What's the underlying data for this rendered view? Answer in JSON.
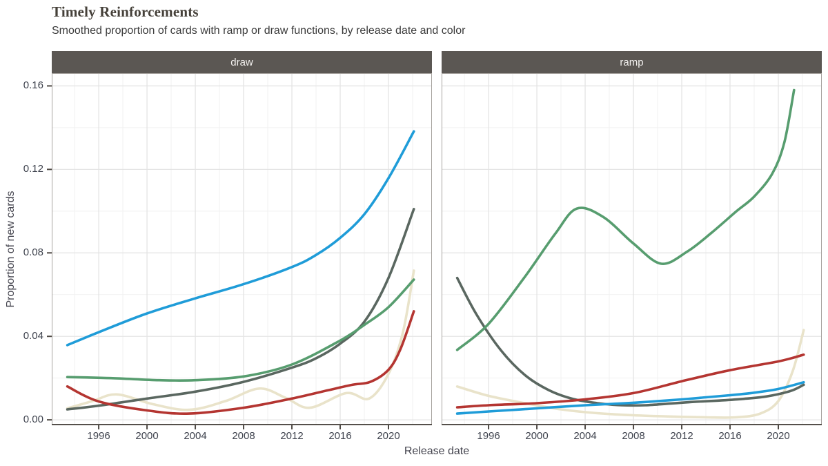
{
  "header": {
    "title": "Timely Reinforcements",
    "subtitle": "Smoothed proportion of cards with ramp or draw functions, by release date and color"
  },
  "theme": {
    "background": "#ffffff",
    "strip_bg": "#5b5753",
    "strip_text": "#f3f1ef",
    "grid_major": "#e4e4e4",
    "grid_minor": "#f1f1f1",
    "panel_border": "#a6a29e",
    "axis_line": "#55504b",
    "tick_mark": "#4f4a45",
    "title_color": "#454039",
    "subtitle_color": "#3b3b3b",
    "axis_text": "#3f434e",
    "axis_title": "#45454f",
    "series_colors": {
      "white": "#e9e3ca",
      "blue": "#1f9cd8",
      "black": "#5a6760",
      "red": "#b43531",
      "green": "#579d6f"
    }
  },
  "chart_data": {
    "type": "line",
    "title": "Timely Reinforcements",
    "subtitle": "Smoothed proportion of cards with ramp or draw functions, by release date and color",
    "legend": "none",
    "grid": "on",
    "axes": {
      "x": {
        "label": "Release date",
        "ticks": [
          1996,
          2000,
          2004,
          2008,
          2012,
          2016,
          2020
        ],
        "tick_labels": [
          "1996",
          "2000",
          "2004",
          "2008",
          "2012",
          "2016",
          "2020"
        ],
        "minor_ticks": [
          1994,
          1998,
          2002,
          2006,
          2010,
          2014,
          2018,
          2022
        ],
        "domain": [
          1992.11,
          2023.6
        ]
      },
      "y": {
        "label": "Proportion of new cards",
        "ticks": [
          0,
          0.04,
          0.08,
          0.12,
          0.16
        ],
        "tick_labels": [
          "0.00",
          "0.04",
          "0.08",
          "0.12",
          "0.16"
        ],
        "minor_ticks": [
          0.02,
          0.06,
          0.1,
          0.14
        ],
        "domain": [
          -0.0026,
          0.1661
        ]
      }
    },
    "facets": [
      {
        "label": "draw",
        "series": [
          {
            "name": "white",
            "color": "#e9e3ca",
            "points": [
              [
                1993.4,
                0.0055
              ],
              [
                1995.5,
                0.009
              ],
              [
                1997.5,
                0.0122
              ],
              [
                2000.5,
                0.0075
              ],
              [
                2003.5,
                0.0048
              ],
              [
                2006.5,
                0.009
              ],
              [
                2009.3,
                0.015
              ],
              [
                2011.5,
                0.0105
              ],
              [
                2013.5,
                0.0058
              ],
              [
                2016.5,
                0.0128
              ],
              [
                2018.4,
                0.0102
              ],
              [
                2020,
                0.022
              ],
              [
                2021.2,
                0.042
              ],
              [
                2022.1,
                0.0715
              ]
            ]
          },
          {
            "name": "black",
            "color": "#5a6760",
            "points": [
              [
                1993.4,
                0.005
              ],
              [
                1996,
                0.0068
              ],
              [
                2000,
                0.0102
              ],
              [
                2004,
                0.0135
              ],
              [
                2008,
                0.0182
              ],
              [
                2012,
                0.025
              ],
              [
                2014,
                0.0295
              ],
              [
                2016,
                0.0365
              ],
              [
                2018,
                0.047
              ],
              [
                2020,
                0.068
              ],
              [
                2022.1,
                0.101
              ]
            ]
          },
          {
            "name": "red",
            "color": "#b43531",
            "points": [
              [
                1993.4,
                0.016
              ],
              [
                1996,
                0.0088
              ],
              [
                2000,
                0.0045
              ],
              [
                2003.5,
                0.003
              ],
              [
                2008,
                0.0058
              ],
              [
                2012,
                0.0102
              ],
              [
                2015,
                0.0142
              ],
              [
                2017,
                0.0168
              ],
              [
                2018.5,
                0.0182
              ],
              [
                2020,
                0.024
              ],
              [
                2021,
                0.034
              ],
              [
                2022.1,
                0.052
              ]
            ]
          },
          {
            "name": "blue",
            "color": "#1f9cd8",
            "points": [
              [
                1993.4,
                0.0358
              ],
              [
                1996,
                0.042
              ],
              [
                2000,
                0.051
              ],
              [
                2004,
                0.0582
              ],
              [
                2008,
                0.065
              ],
              [
                2012,
                0.0732
              ],
              [
                2014,
                0.079
              ],
              [
                2016,
                0.0872
              ],
              [
                2018,
                0.0985
              ],
              [
                2020,
                0.1158
              ],
              [
                2022.1,
                0.1382
              ]
            ]
          },
          {
            "name": "green",
            "color": "#579d6f",
            "points": [
              [
                1993.4,
                0.0205
              ],
              [
                1997,
                0.02
              ],
              [
                2001,
                0.019
              ],
              [
                2004,
                0.019
              ],
              [
                2008,
                0.0208
              ],
              [
                2012,
                0.0265
              ],
              [
                2016,
                0.038
              ],
              [
                2018,
                0.0455
              ],
              [
                2020,
                0.054
              ],
              [
                2022.1,
                0.0672
              ]
            ]
          }
        ]
      },
      {
        "label": "ramp",
        "series": [
          {
            "name": "white",
            "color": "#e9e3ca",
            "points": [
              [
                1993.4,
                0.016
              ],
              [
                1996,
                0.0115
              ],
              [
                1999,
                0.008
              ],
              [
                2002,
                0.005
              ],
              [
                2005,
                0.0032
              ],
              [
                2008,
                0.0022
              ],
              [
                2011,
                0.0016
              ],
              [
                2014,
                0.0012
              ],
              [
                2016.5,
                0.0012
              ],
              [
                2018.5,
                0.003
              ],
              [
                2020,
                0.009
              ],
              [
                2021.2,
                0.0235
              ],
              [
                2022.1,
                0.043
              ]
            ]
          },
          {
            "name": "black",
            "color": "#5a6760",
            "points": [
              [
                1993.4,
                0.068
              ],
              [
                1995,
                0.0505
              ],
              [
                1997,
                0.0335
              ],
              [
                1999,
                0.0215
              ],
              [
                2001,
                0.0142
              ],
              [
                2003,
                0.01
              ],
              [
                2005,
                0.008
              ],
              [
                2007,
                0.007
              ],
              [
                2009,
                0.007
              ],
              [
                2011,
                0.0078
              ],
              [
                2013,
                0.0086
              ],
              [
                2015,
                0.0092
              ],
              [
                2017,
                0.01
              ],
              [
                2019,
                0.0112
              ],
              [
                2021,
                0.0138
              ],
              [
                2022.1,
                0.0168
              ]
            ]
          },
          {
            "name": "red",
            "color": "#b43531",
            "points": [
              [
                1993.4,
                0.006
              ],
              [
                1996,
                0.007
              ],
              [
                2000,
                0.008
              ],
              [
                2004,
                0.0098
              ],
              [
                2008,
                0.0128
              ],
              [
                2012,
                0.0185
              ],
              [
                2016,
                0.0238
              ],
              [
                2020,
                0.028
              ],
              [
                2022.1,
                0.0312
              ]
            ]
          },
          {
            "name": "blue",
            "color": "#1f9cd8",
            "points": [
              [
                1993.4,
                0.003
              ],
              [
                1996,
                0.004
              ],
              [
                2000,
                0.0055
              ],
              [
                2004,
                0.007
              ],
              [
                2008,
                0.0082
              ],
              [
                2012,
                0.0098
              ],
              [
                2014,
                0.0108
              ],
              [
                2016,
                0.0118
              ],
              [
                2018,
                0.013
              ],
              [
                2020,
                0.0148
              ],
              [
                2022.1,
                0.018
              ]
            ]
          },
          {
            "name": "green",
            "color": "#579d6f",
            "points": [
              [
                1993.4,
                0.0335
              ],
              [
                1996,
                0.046
              ],
              [
                1999,
                0.0685
              ],
              [
                2001.5,
                0.089
              ],
              [
                2003.3,
                0.1012
              ],
              [
                2005.5,
                0.0972
              ],
              [
                2008,
                0.0845
              ],
              [
                2010.3,
                0.0748
              ],
              [
                2012.5,
                0.0808
              ],
              [
                2014.5,
                0.0898
              ],
              [
                2016.5,
                0.0998
              ],
              [
                2018,
                0.107
              ],
              [
                2019.5,
                0.118
              ],
              [
                2020.5,
                0.133
              ],
              [
                2021.3,
                0.158
              ]
            ]
          }
        ]
      }
    ]
  }
}
